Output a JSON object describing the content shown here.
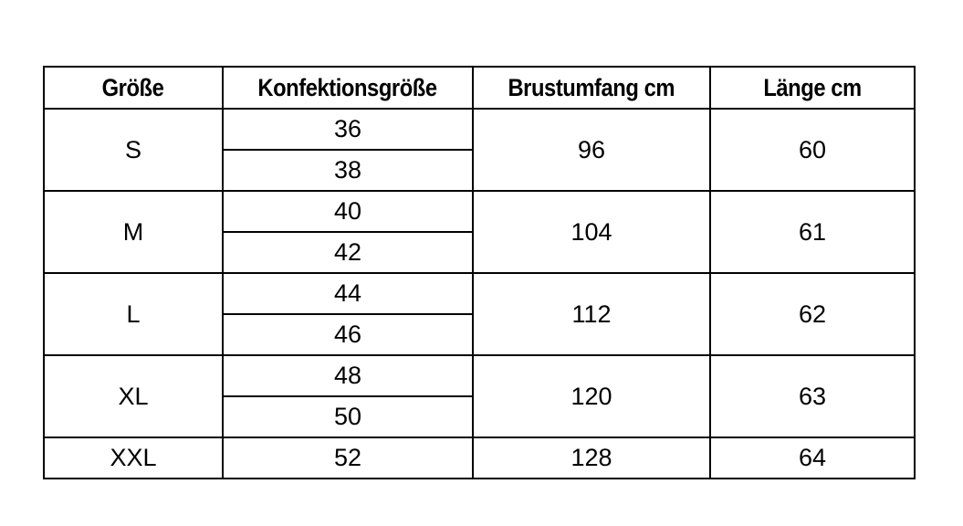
{
  "table": {
    "headers": [
      "Größe",
      "Konfektionsgröße",
      "Brustumfang cm",
      "Länge cm"
    ],
    "rows": [
      {
        "size": "S",
        "konfektion": [
          "36",
          "38"
        ],
        "brust": "96",
        "laenge": "60"
      },
      {
        "size": "M",
        "konfektion": [
          "40",
          "42"
        ],
        "brust": "104",
        "laenge": "61"
      },
      {
        "size": "L",
        "konfektion": [
          "44",
          "46"
        ],
        "brust": "112",
        "laenge": "62"
      },
      {
        "size": "XL",
        "konfektion": [
          "48",
          "50"
        ],
        "brust": "120",
        "laenge": "63"
      },
      {
        "size": "XXL",
        "konfektion": [
          "52"
        ],
        "brust": "128",
        "laenge": "64"
      }
    ]
  }
}
